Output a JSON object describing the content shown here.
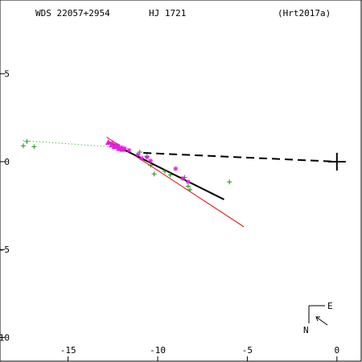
{
  "header": {
    "left": "WDS 22057+2954",
    "center": "HJ 1721",
    "right": "(Hrt2017a)"
  },
  "compass": {
    "north_label": "N",
    "east_label": "E"
  },
  "chart_data": {
    "type": "scatter",
    "xlim": [
      -18.8,
      1.4
    ],
    "ylim": [
      -11.4,
      9.2
    ],
    "x_ticks": [
      {
        "value": -15,
        "label": "-15"
      },
      {
        "value": -10,
        "label": "-10"
      },
      {
        "value": -5,
        "label": "-5"
      },
      {
        "value": 0,
        "label": "0"
      }
    ],
    "y_ticks": [
      {
        "value": 5,
        "label": "5"
      },
      {
        "value": 0,
        "label": "0"
      },
      {
        "value": -5,
        "label": "-5"
      },
      {
        "value": -10,
        "label": "-10"
      }
    ],
    "primary": {
      "x": 0,
      "y": 0
    },
    "colors": {
      "green_obs": "#1a9a1a",
      "magenta_obs": "#e020e0",
      "red_fit": "#e00000",
      "black_orbit": "#000000"
    },
    "red_line": [
      [
        -12.85,
        1.4
      ],
      [
        -5.2,
        -3.7
      ]
    ],
    "black_solid_line": [
      [
        -12.8,
        1.15
      ],
      [
        -6.3,
        -2.15
      ]
    ],
    "black_dashed_line": [
      [
        -10.8,
        0.5
      ],
      [
        0,
        0
      ]
    ],
    "green_dotted_line": [
      [
        -17.5,
        1.2
      ],
      [
        -12.0,
        0.8
      ]
    ],
    "green_points": [
      [
        -17.3,
        1.15
      ],
      [
        -17.5,
        0.9
      ],
      [
        -16.9,
        0.85
      ],
      [
        -11.0,
        0.55
      ],
      [
        -10.6,
        0.3
      ],
      [
        -10.4,
        -0.2
      ],
      [
        -10.2,
        -0.7
      ],
      [
        -9.6,
        -0.55
      ],
      [
        -9.3,
        -0.75
      ],
      [
        -8.5,
        -0.9
      ],
      [
        -8.3,
        -1.4
      ],
      [
        -8.2,
        -1.6
      ],
      [
        -6.0,
        -1.15
      ]
    ],
    "magenta_stars": [
      [
        -12.55,
        1.05
      ],
      [
        -12.35,
        0.95
      ],
      [
        -12.2,
        0.9
      ],
      [
        -12.0,
        0.8
      ],
      [
        -11.85,
        0.75
      ],
      [
        -11.6,
        0.65
      ],
      [
        -11.1,
        0.4
      ],
      [
        -10.9,
        0.2
      ],
      [
        -10.6,
        0.25
      ],
      [
        -10.4,
        0.05
      ],
      [
        -9.0,
        -0.4
      ],
      [
        -8.6,
        -0.95
      ],
      [
        -8.3,
        -1.15
      ]
    ],
    "magenta_triangles": [
      [
        -12.75,
        1.1
      ],
      [
        -12.55,
        0.95
      ],
      [
        -12.4,
        0.85
      ],
      [
        -12.3,
        0.9
      ],
      [
        -12.15,
        0.75
      ],
      [
        -11.95,
        0.7
      ]
    ]
  }
}
